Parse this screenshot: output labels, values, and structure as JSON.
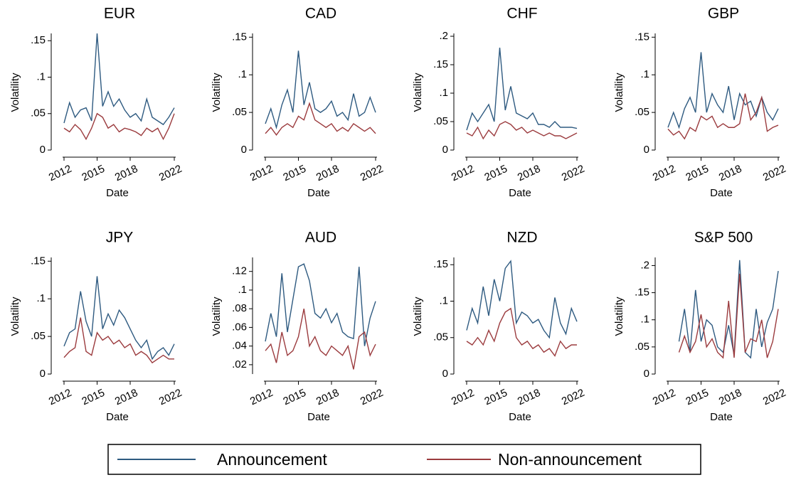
{
  "chart_data": [
    {
      "type": "line",
      "title": "EUR",
      "ylabel": "Volatility",
      "xlabel": "Date",
      "x": [
        2012,
        2012.5,
        2013,
        2013.5,
        2014,
        2014.5,
        2015,
        2015.5,
        2016,
        2016.5,
        2017,
        2017.5,
        2018,
        2018.5,
        2019,
        2019.5,
        2020,
        2020.5,
        2021,
        2021.5,
        2022
      ],
      "xlim": [
        2012,
        2022
      ],
      "xticks": [
        2012,
        2015,
        2018,
        2022
      ],
      "ylim": [
        0,
        0.16
      ],
      "yticks": [
        0,
        {
          "value": 0.05,
          "label": ".05"
        },
        {
          "value": 0.1,
          "label": ".1"
        },
        {
          "value": 0.15,
          "label": ".15"
        }
      ],
      "series": [
        {
          "name": "Announcement",
          "color": "#2e5a80",
          "values": [
            0.037,
            0.065,
            0.045,
            0.055,
            0.058,
            0.04,
            0.16,
            0.06,
            0.08,
            0.06,
            0.07,
            0.055,
            0.045,
            0.05,
            0.04,
            0.07,
            0.045,
            0.04,
            0.035,
            0.045,
            0.058
          ]
        },
        {
          "name": "Non-announcement",
          "color": "#9b3b3e",
          "values": [
            0.03,
            0.025,
            0.035,
            0.028,
            0.015,
            0.03,
            0.05,
            0.045,
            0.03,
            0.035,
            0.025,
            0.03,
            0.028,
            0.025,
            0.02,
            0.03,
            0.025,
            0.03,
            0.015,
            0.03,
            0.05
          ]
        }
      ]
    },
    {
      "type": "line",
      "title": "CAD",
      "ylabel": "Volatility",
      "xlabel": "Date",
      "x": [
        2012,
        2012.5,
        2013,
        2013.5,
        2014,
        2014.5,
        2015,
        2015.5,
        2016,
        2016.5,
        2017,
        2017.5,
        2018,
        2018.5,
        2019,
        2019.5,
        2020,
        2020.5,
        2021,
        2021.5,
        2022
      ],
      "xlim": [
        2012,
        2022
      ],
      "xticks": [
        2012,
        2015,
        2018,
        2022
      ],
      "ylim": [
        0,
        0.155
      ],
      "yticks": [
        0,
        {
          "value": 0.05,
          "label": ".05"
        },
        {
          "value": 0.1,
          "label": ".1"
        },
        {
          "value": 0.15,
          "label": ".15"
        }
      ],
      "series": [
        {
          "name": "Announcement",
          "color": "#2e5a80",
          "values": [
            0.035,
            0.055,
            0.03,
            0.06,
            0.08,
            0.05,
            0.132,
            0.06,
            0.09,
            0.055,
            0.05,
            0.055,
            0.065,
            0.045,
            0.05,
            0.04,
            0.075,
            0.045,
            0.05,
            0.07,
            0.05
          ]
        },
        {
          "name": "Non-announcement",
          "color": "#9b3b3e",
          "values": [
            0.022,
            0.03,
            0.02,
            0.03,
            0.035,
            0.03,
            0.045,
            0.04,
            0.062,
            0.04,
            0.035,
            0.03,
            0.035,
            0.025,
            0.03,
            0.025,
            0.035,
            0.03,
            0.025,
            0.03,
            0.022
          ]
        }
      ]
    },
    {
      "type": "line",
      "title": "CHF",
      "ylabel": "Volatility",
      "xlabel": "Date",
      "x": [
        2012,
        2012.5,
        2013,
        2013.5,
        2014,
        2014.5,
        2015,
        2015.5,
        2016,
        2016.5,
        2017,
        2017.5,
        2018,
        2018.5,
        2019,
        2019.5,
        2020,
        2020.5,
        2021,
        2021.5,
        2022
      ],
      "xlim": [
        2012,
        2022
      ],
      "xticks": [
        2012,
        2015,
        2018,
        2022
      ],
      "ylim": [
        0,
        0.205
      ],
      "yticks": [
        0,
        {
          "value": 0.05,
          "label": ".05"
        },
        {
          "value": 0.1,
          "label": ".1"
        },
        {
          "value": 0.15,
          "label": ".15"
        },
        {
          "value": 0.2,
          "label": ".2"
        }
      ],
      "series": [
        {
          "name": "Announcement",
          "color": "#2e5a80",
          "values": [
            0.035,
            0.065,
            0.05,
            0.065,
            0.08,
            0.05,
            0.18,
            0.07,
            0.112,
            0.065,
            0.06,
            0.055,
            0.065,
            0.045,
            0.045,
            0.04,
            0.05,
            0.04,
            0.04,
            0.04,
            0.038
          ]
        },
        {
          "name": "Non-announcement",
          "color": "#9b3b3e",
          "values": [
            0.03,
            0.025,
            0.04,
            0.02,
            0.035,
            0.025,
            0.045,
            0.05,
            0.045,
            0.035,
            0.04,
            0.03,
            0.035,
            0.03,
            0.025,
            0.03,
            0.025,
            0.025,
            0.02,
            0.025,
            0.03
          ]
        }
      ]
    },
    {
      "type": "line",
      "title": "GBP",
      "ylabel": "Volatility",
      "xlabel": "Date",
      "x": [
        2012,
        2012.5,
        2013,
        2013.5,
        2014,
        2014.5,
        2015,
        2015.5,
        2016,
        2016.5,
        2017,
        2017.5,
        2018,
        2018.5,
        2019,
        2019.5,
        2020,
        2020.5,
        2021,
        2021.5,
        2022
      ],
      "xlim": [
        2012,
        2022
      ],
      "xticks": [
        2012,
        2015,
        2018,
        2022
      ],
      "ylim": [
        0,
        0.155
      ],
      "yticks": [
        0,
        {
          "value": 0.05,
          "label": ".05"
        },
        {
          "value": 0.1,
          "label": ".1"
        },
        {
          "value": 0.15,
          "label": ".15"
        }
      ],
      "series": [
        {
          "name": "Announcement",
          "color": "#2e5a80",
          "values": [
            0.03,
            0.05,
            0.03,
            0.055,
            0.07,
            0.05,
            0.13,
            0.05,
            0.075,
            0.06,
            0.05,
            0.085,
            0.04,
            0.075,
            0.06,
            0.065,
            0.045,
            0.07,
            0.05,
            0.04,
            0.055
          ]
        },
        {
          "name": "Non-announcement",
          "color": "#9b3b3e",
          "values": [
            0.028,
            0.02,
            0.025,
            0.015,
            0.03,
            0.025,
            0.045,
            0.04,
            0.045,
            0.03,
            0.035,
            0.03,
            0.03,
            0.035,
            0.075,
            0.04,
            0.05,
            0.07,
            0.025,
            0.03,
            0.033
          ]
        }
      ]
    },
    {
      "type": "line",
      "title": "JPY",
      "ylabel": "Volatility",
      "xlabel": "Date",
      "x": [
        2012,
        2012.5,
        2013,
        2013.5,
        2014,
        2014.5,
        2015,
        2015.5,
        2016,
        2016.5,
        2017,
        2017.5,
        2018,
        2018.5,
        2019,
        2019.5,
        2020,
        2020.5,
        2021,
        2021.5,
        2022
      ],
      "xlim": [
        2012,
        2022
      ],
      "xticks": [
        2012,
        2015,
        2018,
        2022
      ],
      "ylim": [
        0,
        0.155
      ],
      "yticks": [
        0,
        {
          "value": 0.05,
          "label": ".05"
        },
        {
          "value": 0.1,
          "label": ".1"
        },
        {
          "value": 0.15,
          "label": ".15"
        }
      ],
      "series": [
        {
          "name": "Announcement",
          "color": "#2e5a80",
          "values": [
            0.037,
            0.055,
            0.06,
            0.11,
            0.07,
            0.05,
            0.13,
            0.06,
            0.08,
            0.065,
            0.085,
            0.075,
            0.06,
            0.045,
            0.035,
            0.045,
            0.02,
            0.03,
            0.035,
            0.025,
            0.04
          ]
        },
        {
          "name": "Non-announcement",
          "color": "#9b3b3e",
          "values": [
            0.022,
            0.03,
            0.035,
            0.075,
            0.03,
            0.025,
            0.055,
            0.045,
            0.05,
            0.04,
            0.045,
            0.035,
            0.04,
            0.025,
            0.03,
            0.025,
            0.015,
            0.02,
            0.025,
            0.02,
            0.02
          ]
        }
      ]
    },
    {
      "type": "line",
      "title": "AUD",
      "ylabel": "Volatility",
      "xlabel": "Date",
      "x": [
        2012,
        2012.5,
        2013,
        2013.5,
        2014,
        2014.5,
        2015,
        2015.5,
        2016,
        2016.5,
        2017,
        2017.5,
        2018,
        2018.5,
        2019,
        2019.5,
        2020,
        2020.5,
        2021,
        2021.5,
        2022
      ],
      "xlim": [
        2012,
        2022
      ],
      "xticks": [
        2012,
        2015,
        2018,
        2022
      ],
      "ylim": [
        0.01,
        0.135
      ],
      "yticks": [
        {
          "value": 0.02,
          "label": ".02"
        },
        {
          "value": 0.04,
          "label": ".04"
        },
        {
          "value": 0.06,
          "label": ".06"
        },
        {
          "value": 0.08,
          "label": ".08"
        },
        {
          "value": 0.1,
          "label": ".1"
        },
        {
          "value": 0.12,
          "label": ".12"
        }
      ],
      "series": [
        {
          "name": "Announcement",
          "color": "#2e5a80",
          "values": [
            0.045,
            0.075,
            0.05,
            0.118,
            0.055,
            0.09,
            0.125,
            0.128,
            0.11,
            0.075,
            0.07,
            0.08,
            0.065,
            0.075,
            0.055,
            0.05,
            0.048,
            0.125,
            0.04,
            0.07,
            0.088
          ]
        },
        {
          "name": "Non-announcement",
          "color": "#9b3b3e",
          "values": [
            0.035,
            0.042,
            0.022,
            0.055,
            0.03,
            0.035,
            0.05,
            0.08,
            0.04,
            0.05,
            0.035,
            0.03,
            0.04,
            0.035,
            0.03,
            0.04,
            0.015,
            0.05,
            0.055,
            0.03,
            0.042
          ]
        }
      ]
    },
    {
      "type": "line",
      "title": "NZD",
      "ylabel": "Volatility",
      "xlabel": "Date",
      "x": [
        2012,
        2012.5,
        2013,
        2013.5,
        2014,
        2014.5,
        2015,
        2015.5,
        2016,
        2016.5,
        2017,
        2017.5,
        2018,
        2018.5,
        2019,
        2019.5,
        2020,
        2020.5,
        2021,
        2021.5,
        2022
      ],
      "xlim": [
        2012,
        2022
      ],
      "xticks": [
        2012,
        2015,
        2018,
        2022
      ],
      "ylim": [
        0,
        0.16
      ],
      "yticks": [
        0,
        {
          "value": 0.05,
          "label": ".05"
        },
        {
          "value": 0.1,
          "label": ".1"
        },
        {
          "value": 0.15,
          "label": ".15"
        }
      ],
      "series": [
        {
          "name": "Announcement",
          "color": "#2e5a80",
          "values": [
            0.06,
            0.09,
            0.07,
            0.12,
            0.08,
            0.13,
            0.1,
            0.145,
            0.155,
            0.07,
            0.085,
            0.08,
            0.07,
            0.075,
            0.06,
            0.05,
            0.105,
            0.07,
            0.055,
            0.09,
            0.072
          ]
        },
        {
          "name": "Non-announcement",
          "color": "#9b3b3e",
          "values": [
            0.045,
            0.04,
            0.05,
            0.04,
            0.06,
            0.045,
            0.07,
            0.085,
            0.09,
            0.05,
            0.04,
            0.045,
            0.035,
            0.04,
            0.03,
            0.035,
            0.025,
            0.045,
            0.035,
            0.04,
            0.04
          ]
        }
      ]
    },
    {
      "type": "line",
      "title": "S&P 500",
      "ylabel": "Volatility",
      "xlabel": "Date",
      "x": [
        2012,
        2012.5,
        2013,
        2013.5,
        2014,
        2014.5,
        2015,
        2015.5,
        2016,
        2016.5,
        2017,
        2017.5,
        2018,
        2018.5,
        2019,
        2019.5,
        2020,
        2020.5,
        2021,
        2021.5,
        2022
      ],
      "xlim": [
        2012,
        2022
      ],
      "xticks": [
        2012,
        2015,
        2018,
        2022
      ],
      "ylim": [
        0,
        0.215
      ],
      "yticks": [
        0,
        {
          "value": 0.05,
          "label": ".05"
        },
        {
          "value": 0.1,
          "label": ".1"
        },
        {
          "value": 0.15,
          "label": ".15"
        },
        {
          "value": 0.2,
          "label": ".2"
        }
      ],
      "series": [
        {
          "name": "Announcement",
          "color": "#2e5a80",
          "values": [
            null,
            null,
            0.06,
            0.12,
            0.04,
            0.155,
            0.06,
            0.1,
            0.09,
            0.05,
            0.04,
            0.09,
            0.035,
            0.21,
            0.04,
            0.03,
            0.12,
            0.05,
            0.095,
            0.12,
            0.19
          ]
        },
        {
          "name": "Non-announcement",
          "color": "#9b3b3e",
          "values": [
            null,
            null,
            0.04,
            0.07,
            0.04,
            0.06,
            0.11,
            0.05,
            0.065,
            0.04,
            0.03,
            0.135,
            0.03,
            0.185,
            0.04,
            0.065,
            0.06,
            0.1,
            0.03,
            0.06,
            0.12
          ]
        }
      ]
    }
  ]
}
